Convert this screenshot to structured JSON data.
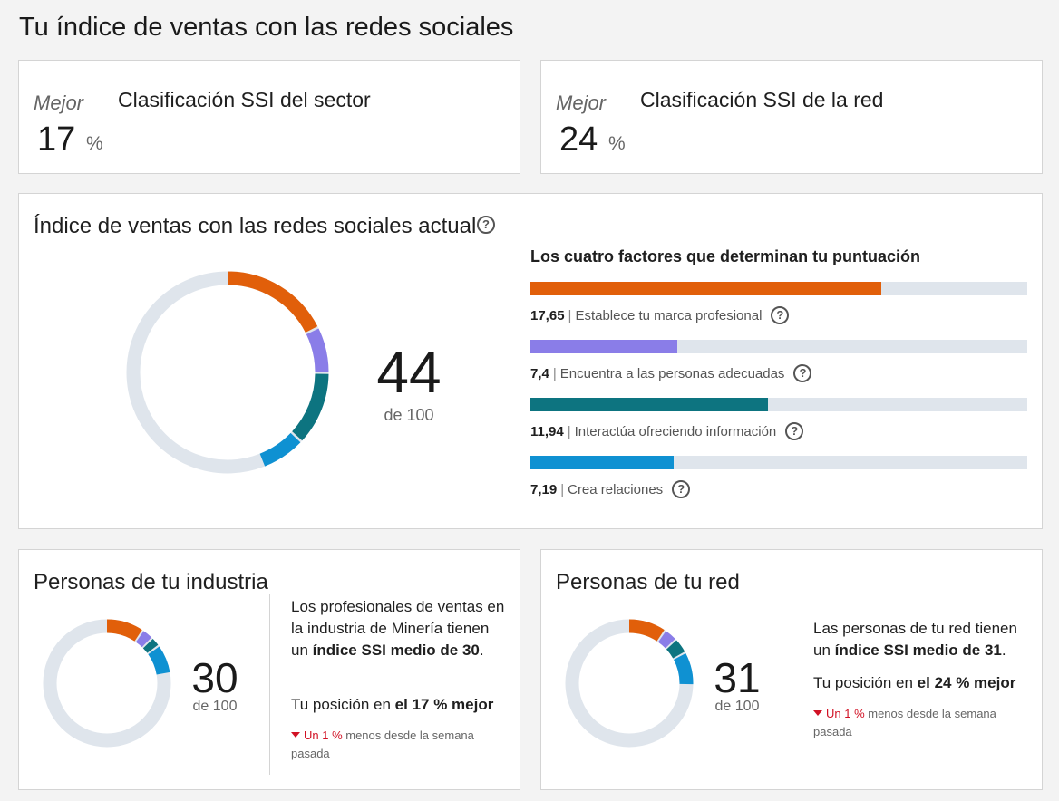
{
  "page": {
    "title": "Tu índice de ventas con las redes sociales"
  },
  "rank_sector": {
    "mejor": "Mejor",
    "value": "17",
    "unit": "%",
    "title": "Clasificación SSI del sector"
  },
  "rank_red": {
    "mejor": "Mejor",
    "value": "24",
    "unit": "%",
    "title": "Clasificación SSI de la red"
  },
  "ssi": {
    "title": "Índice de ventas con las redes sociales actual",
    "score": "44",
    "score_sub": "de 100",
    "factors_heading": "Los cuatro factores que determinan tu puntuación",
    "factors": [
      {
        "value": "17,65",
        "label": "Establece tu marca profesional",
        "fraction": 0.706,
        "color": "#e15f0a"
      },
      {
        "value": "7,4",
        "label": "Encuentra a las personas adecuadas",
        "fraction": 0.296,
        "color": "#8a7de8"
      },
      {
        "value": "11,94",
        "label": "Interactúa ofreciendo información",
        "fraction": 0.478,
        "color": "#0d7480"
      },
      {
        "value": "7,19",
        "label": "Crea relaciones",
        "fraction": 0.288,
        "color": "#0f91d2"
      }
    ]
  },
  "industria": {
    "title": "Personas de tu industria",
    "score": "30",
    "score_sub": "de 100",
    "desc_pre": "Los profesionales de ventas en la industria de Minería tienen un ",
    "desc_bold": "índice SSI medio de 30",
    "desc_post": ".",
    "pos_pre": "Tu posición en ",
    "pos_bold": "el 17 % mejor",
    "change_down": "Un 1 %",
    "change_rest": " menos desde la semana pasada",
    "segments": [
      9.5,
      3.0,
      2.5,
      7.5
    ]
  },
  "tured": {
    "title": "Personas de tu red",
    "score": "31",
    "score_sub": "de 100",
    "desc_pre": "Las personas de tu red tienen un ",
    "desc_bold": "índice SSI medio de 31",
    "desc_post": ".",
    "pos_pre": "Tu posición en ",
    "pos_bold": "el 24 % mejor",
    "change_down": "Un 1 %",
    "change_rest": " menos desde la semana pasada",
    "segments": [
      9.5,
      3.5,
      4.0,
      8.5
    ]
  },
  "icons": {
    "help": "help-circle-icon",
    "down": "triangle-down-icon"
  },
  "colors": {
    "orange": "#e15f0a",
    "purple": "#8a7de8",
    "teal": "#0d7480",
    "blue": "#0f91d2",
    "track": "#dfe5ec",
    "down": "#d11124"
  }
}
